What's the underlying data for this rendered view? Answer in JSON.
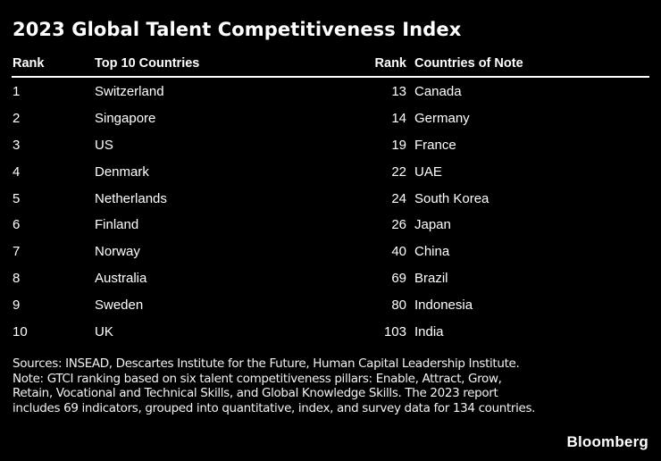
{
  "chart_data": {
    "type": "table",
    "title": "2023 Global Talent Competitiveness Index",
    "columns": [
      "Rank",
      "Top 10 Countries",
      "Rank",
      "Countries of Note"
    ],
    "top_10_countries": [
      {
        "rank": 1,
        "name": "Switzerland"
      },
      {
        "rank": 2,
        "name": "Singapore"
      },
      {
        "rank": 3,
        "name": "US"
      },
      {
        "rank": 4,
        "name": "Denmark"
      },
      {
        "rank": 5,
        "name": "Netherlands"
      },
      {
        "rank": 6,
        "name": "Finland"
      },
      {
        "rank": 7,
        "name": "Norway"
      },
      {
        "rank": 8,
        "name": "Australia"
      },
      {
        "rank": 9,
        "name": "Sweden"
      },
      {
        "rank": 10,
        "name": "UK"
      }
    ],
    "countries_of_note": [
      {
        "rank": 13,
        "name": "Canada"
      },
      {
        "rank": 14,
        "name": "Germany"
      },
      {
        "rank": 19,
        "name": "France"
      },
      {
        "rank": 22,
        "name": "UAE"
      },
      {
        "rank": 24,
        "name": "South Korea"
      },
      {
        "rank": 26,
        "name": "Japan"
      },
      {
        "rank": 40,
        "name": "China"
      },
      {
        "rank": 69,
        "name": "Brazil"
      },
      {
        "rank": 80,
        "name": "Indonesia"
      },
      {
        "rank": 103,
        "name": "India"
      }
    ]
  },
  "footer": {
    "sources": "Sources: INSEAD, Descartes Institute for the Future, Human Capital Leadership Institute.",
    "note": "Note: GTCI ranking based on six talent competitiveness pillars: Enable, Attract, Grow, Retain, Vocational and Technical Skills, and Global Knowledge Skills. The 2023 report includes 69 indicators, grouped into quantitative, index, and survey data for 134 countries.",
    "brand": "Bloomberg"
  },
  "colors": {
    "background": "#000000",
    "text": "#ffffff",
    "rule": "#ffffff"
  }
}
